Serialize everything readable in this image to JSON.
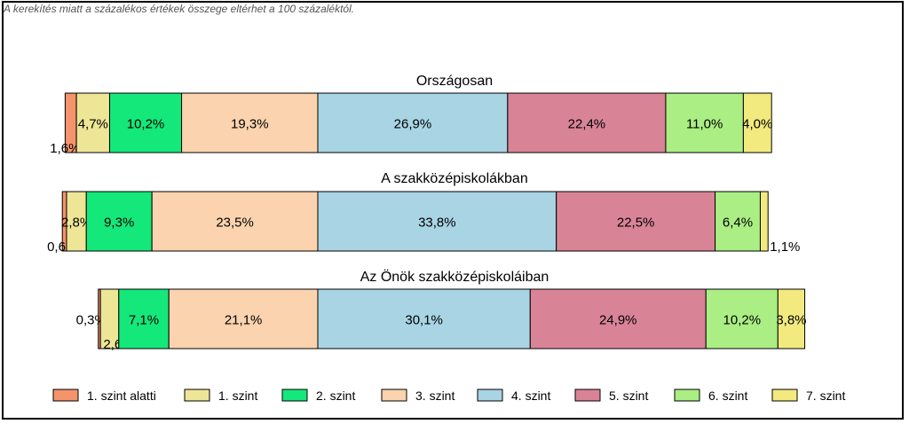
{
  "note": "A kerekítés miatt a  százalékos értékek összege eltérhet a 100 százaléktól.",
  "chart_data": {
    "type": "bar",
    "orientation": "horizontal",
    "stacked": true,
    "legend_position": "bottom",
    "categories": [
      "Országosan",
      "A szakközépiskolákban",
      "Az Önök szakközépiskoláiban"
    ],
    "series": [
      {
        "name": "1. szint alatti",
        "color": "#f4936c",
        "values": [
          1.6,
          0.6,
          0.3
        ],
        "labels": [
          "1,6%",
          "0,6%",
          "0,3%"
        ]
      },
      {
        "name": "1. szint",
        "color": "#ede697",
        "values": [
          4.7,
          2.8,
          2.6
        ],
        "labels": [
          "4,7%",
          "2,8%",
          "2,6%"
        ]
      },
      {
        "name": "2. szint",
        "color": "#14e87a",
        "values": [
          10.2,
          9.3,
          7.1
        ],
        "labels": [
          "10,2%",
          "9,3%",
          "7,1%"
        ]
      },
      {
        "name": "3. szint",
        "color": "#fbd3ae",
        "values": [
          19.3,
          23.5,
          21.1
        ],
        "labels": [
          "19,3%",
          "23,5%",
          "21,1%"
        ]
      },
      {
        "name": "4. szint",
        "color": "#a8d4e3",
        "values": [
          26.9,
          33.8,
          30.1
        ],
        "labels": [
          "26,9%",
          "33,8%",
          "30,1%"
        ]
      },
      {
        "name": "5. szint",
        "color": "#d98496",
        "values": [
          22.4,
          22.5,
          24.9
        ],
        "labels": [
          "22,4%",
          "22,5%",
          "24,9%"
        ]
      },
      {
        "name": "6. szint",
        "color": "#aaee84",
        "values": [
          11.0,
          6.4,
          10.2
        ],
        "labels": [
          "11,0%",
          "6,4%",
          "10,2%"
        ]
      },
      {
        "name": "7. szint",
        "color": "#f2ea7e",
        "values": [
          4.0,
          1.1,
          3.8
        ],
        "labels": [
          "4,0%",
          "1,1%",
          "3,8%"
        ]
      }
    ],
    "centered_on": "3. szint / 4. szint boundary"
  }
}
